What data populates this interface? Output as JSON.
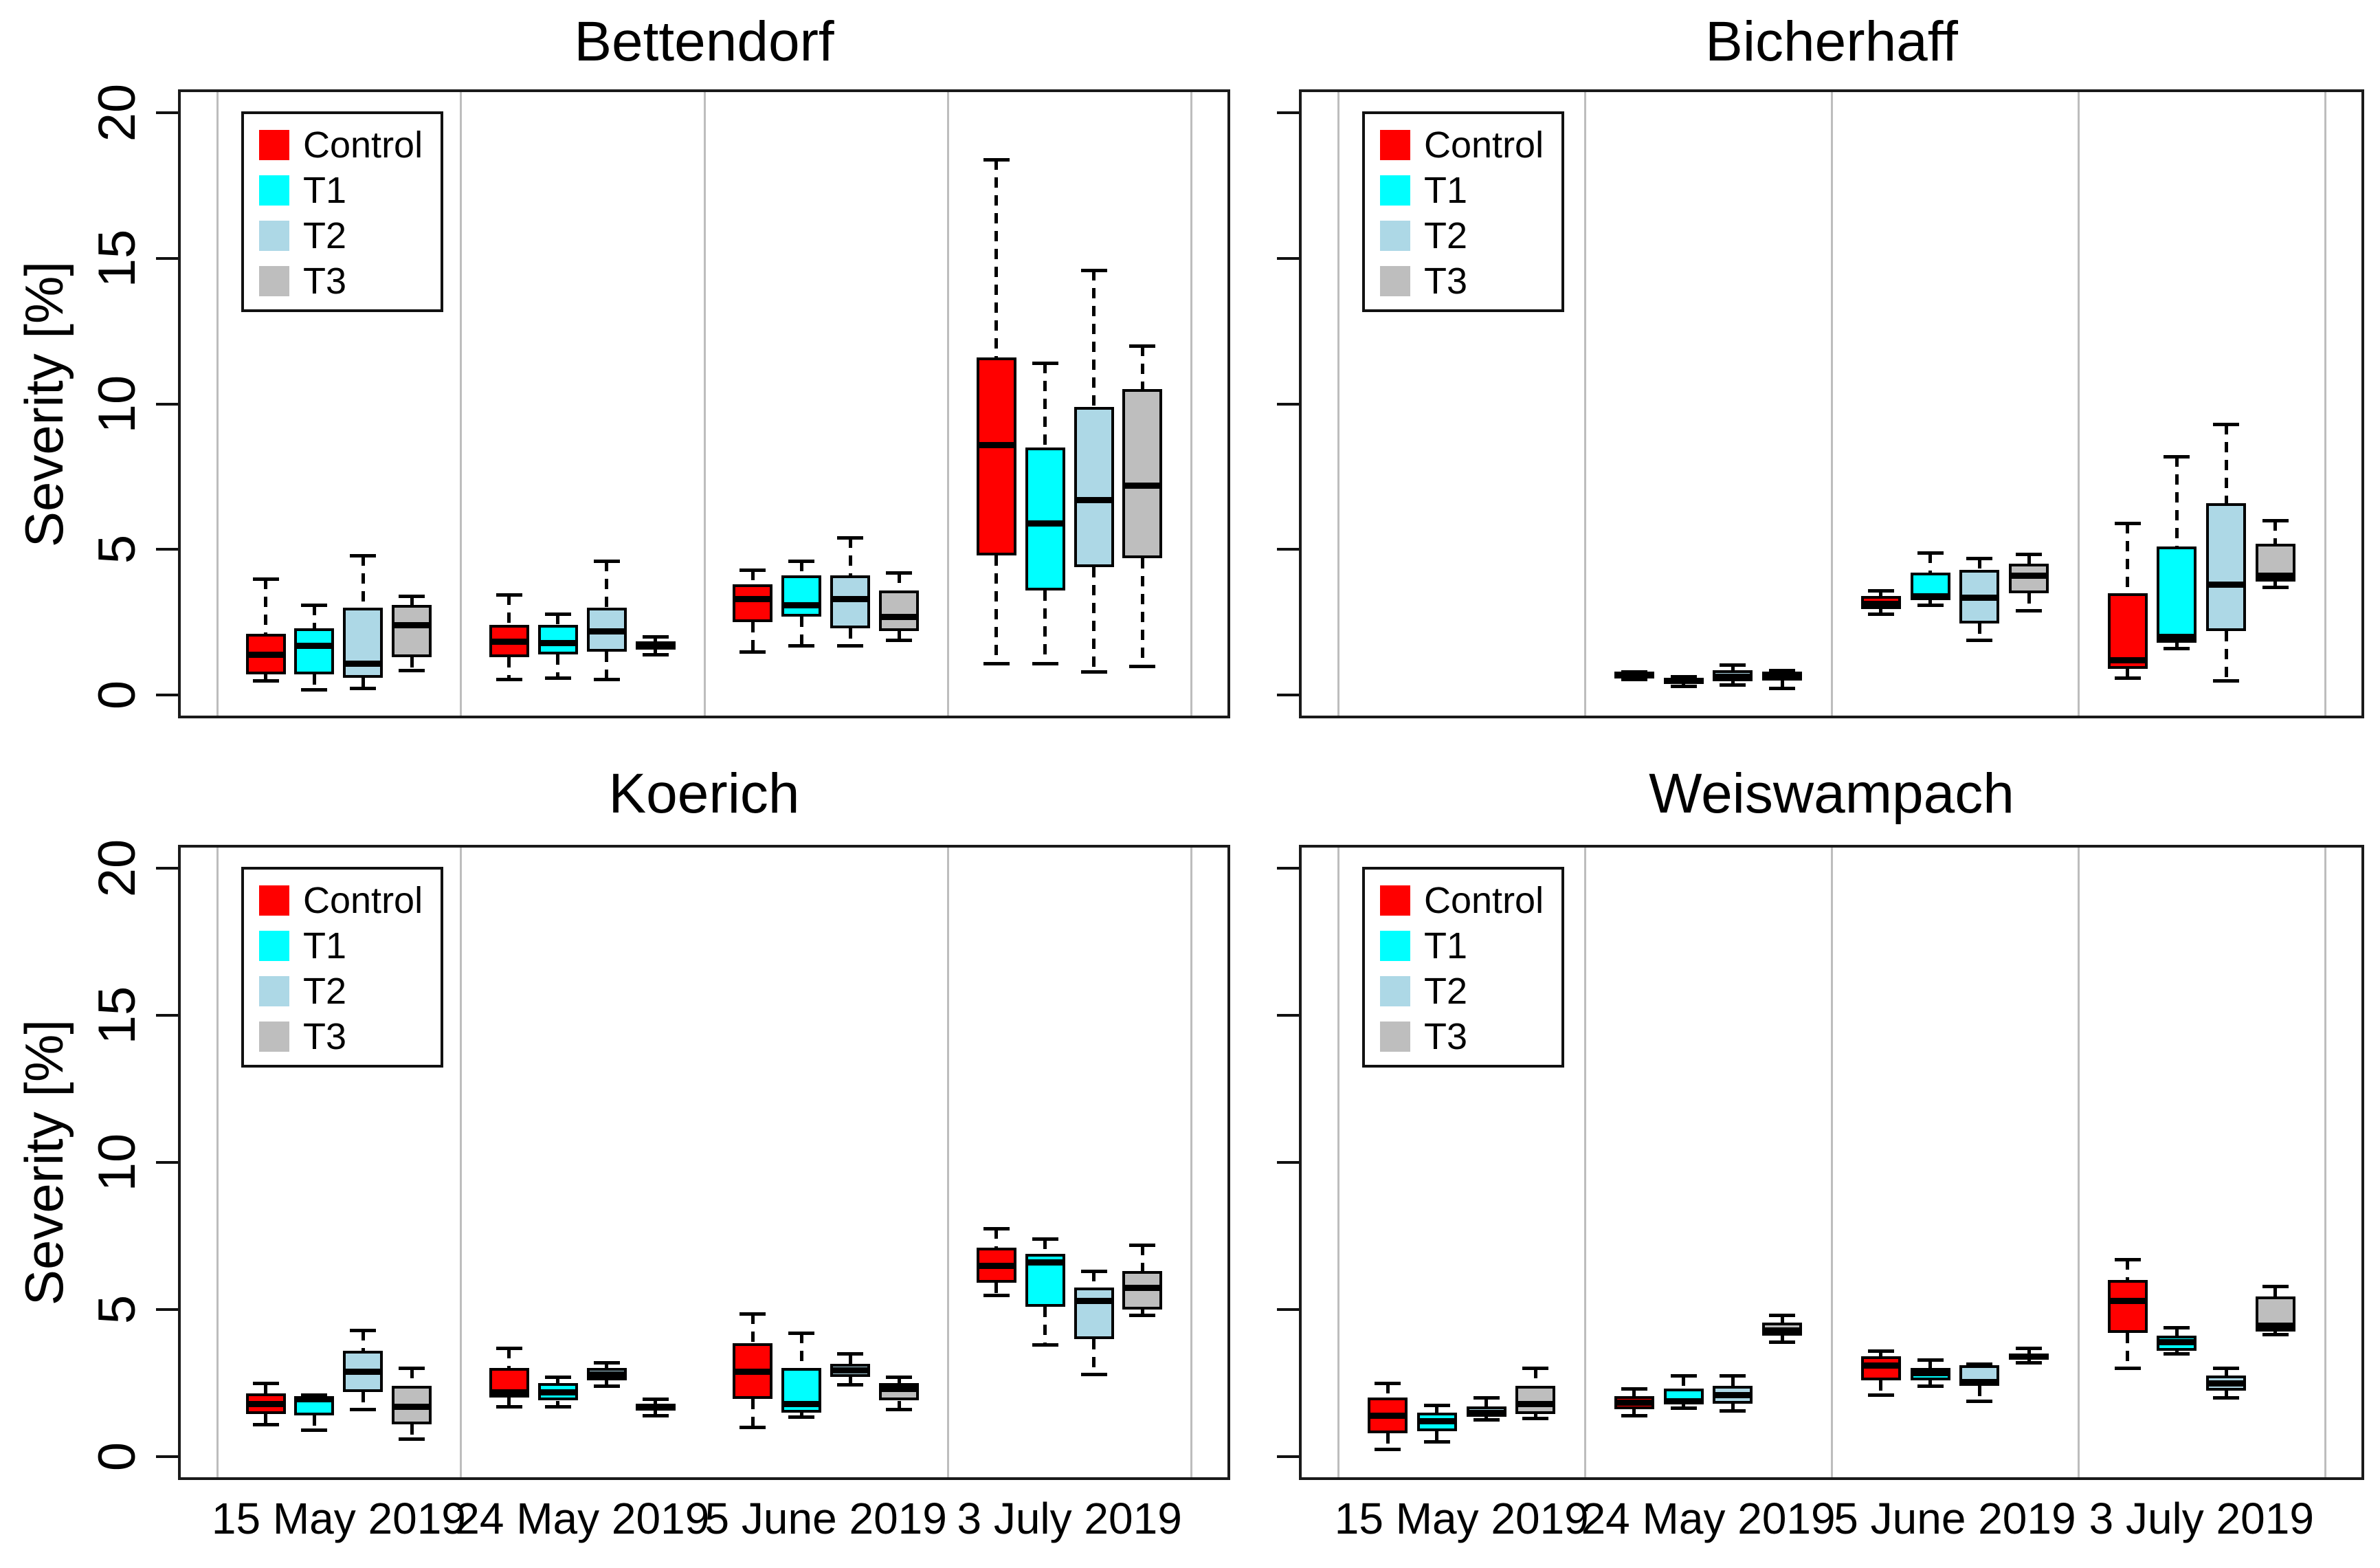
{
  "figure": {
    "background": "#ffffff"
  },
  "colors": {
    "control": "#ff0000",
    "t1": "#00ffff",
    "t2": "#add8e6",
    "t3": "#bebebe",
    "frame": "#1a1a1a",
    "separator": "#bdbdbd",
    "text": "#000000"
  },
  "legend": {
    "entries": [
      {
        "key": "control",
        "label": "Control",
        "color": "#ff0000"
      },
      {
        "key": "t1",
        "label": "T1",
        "color": "#00ffff"
      },
      {
        "key": "t2",
        "label": "T2",
        "color": "#add8e6"
      },
      {
        "key": "t3",
        "label": "T3",
        "color": "#bebebe"
      }
    ]
  },
  "y_axis": {
    "label": "Severity [%]",
    "ticks": [
      0,
      5,
      10,
      15,
      20
    ],
    "tick_labels": [
      "0",
      "5",
      "10",
      "15",
      "20"
    ],
    "range": [
      0,
      20
    ]
  },
  "x_axis": {
    "dates": [
      "15 May 2019",
      "24 May 2019",
      "5 June 2019",
      "3 July 2019"
    ]
  },
  "chart_data": {
    "type": "boxplot",
    "stats_order": [
      "whisker_low",
      "q1",
      "median",
      "q3",
      "whisker_high"
    ],
    "series_order": [
      "control",
      "t1",
      "t2",
      "t3"
    ],
    "ylabel": "Severity [%]",
    "ylim": [
      0,
      20
    ],
    "panels": [
      {
        "title": "Bettendorf",
        "grid": {
          "row": 0,
          "col": 0
        },
        "show_y_tick_labels": true,
        "show_x_labels": false,
        "mid_separator": true,
        "groups": [
          {
            "date": "15 May 2019",
            "boxes": {
              "control": [
                0.5,
                0.7,
                1.4,
                2.1,
                4.0
              ],
              "t1": [
                0.2,
                0.7,
                1.7,
                2.3,
                3.1
              ],
              "t2": [
                0.25,
                0.6,
                1.1,
                3.0,
                4.8
              ],
              "t3": [
                0.85,
                1.3,
                2.4,
                3.1,
                3.4
              ]
            }
          },
          {
            "date": "24 May 2019",
            "boxes": {
              "control": [
                0.55,
                1.3,
                1.85,
                2.4,
                3.45
              ],
              "t1": [
                0.6,
                1.4,
                1.8,
                2.4,
                2.8
              ],
              "t2": [
                0.55,
                1.5,
                2.2,
                3.0,
                4.6
              ],
              "t3": [
                1.4,
                1.55,
                1.7,
                1.85,
                2.0
              ]
            }
          },
          {
            "date": "5 June 2019",
            "boxes": {
              "control": [
                1.5,
                2.5,
                3.3,
                3.8,
                4.3
              ],
              "t1": [
                1.7,
                2.7,
                3.1,
                4.1,
                4.6
              ],
              "t2": [
                1.7,
                2.3,
                3.3,
                4.1,
                5.4
              ],
              "t3": [
                1.9,
                2.2,
                2.7,
                3.6,
                4.2
              ]
            }
          },
          {
            "date": "3 July 2019",
            "boxes": {
              "control": [
                1.1,
                4.8,
                8.6,
                11.6,
                18.4
              ],
              "t1": [
                1.1,
                3.6,
                5.9,
                8.5,
                11.4
              ],
              "t2": [
                0.8,
                4.4,
                6.7,
                9.9,
                14.6
              ],
              "t3": [
                1.0,
                4.7,
                7.2,
                10.5,
                12.0
              ]
            }
          }
        ]
      },
      {
        "title": "Bicherhaff",
        "grid": {
          "row": 0,
          "col": 1
        },
        "show_y_tick_labels": false,
        "show_x_labels": false,
        "mid_separator": true,
        "groups": [
          {
            "date": "15 May 2019",
            "boxes": {
              "control": null,
              "t1": null,
              "t2": null,
              "t3": null
            }
          },
          {
            "date": "24 May 2019",
            "boxes": {
              "control": [
                0.55,
                0.63,
                0.7,
                0.76,
                0.8
              ],
              "t1": [
                0.3,
                0.4,
                0.5,
                0.6,
                0.65
              ],
              "t2": [
                0.35,
                0.47,
                0.65,
                0.85,
                1.05
              ],
              "t3": [
                0.25,
                0.5,
                0.65,
                0.8,
                0.85
              ]
            }
          },
          {
            "date": "5 June 2019",
            "boxes": {
              "control": [
                2.8,
                2.95,
                3.15,
                3.4,
                3.6
              ],
              "t1": [
                3.1,
                3.25,
                3.4,
                4.2,
                4.9
              ],
              "t2": [
                1.9,
                2.45,
                3.35,
                4.3,
                4.7
              ],
              "t3": [
                2.9,
                3.5,
                4.1,
                4.5,
                4.85
              ]
            }
          },
          {
            "date": "3 July 2019",
            "boxes": {
              "control": [
                0.6,
                0.9,
                1.2,
                3.5,
                5.9
              ],
              "t1": [
                1.6,
                1.8,
                2.0,
                5.1,
                8.2
              ],
              "t2": [
                0.5,
                2.2,
                3.8,
                6.6,
                9.3
              ],
              "t3": [
                3.7,
                3.9,
                4.1,
                5.2,
                6.0
              ]
            }
          }
        ]
      },
      {
        "title": "Koerich",
        "grid": {
          "row": 1,
          "col": 0
        },
        "show_y_tick_labels": true,
        "show_x_labels": true,
        "mid_separator": false,
        "groups": [
          {
            "date": "15 May 2019",
            "boxes": {
              "control": [
                1.1,
                1.45,
                1.8,
                2.15,
                2.5
              ],
              "t1": [
                0.9,
                1.4,
                1.95,
                2.05,
                2.1
              ],
              "t2": [
                1.6,
                2.2,
                2.9,
                3.6,
                4.3
              ],
              "t3": [
                0.6,
                1.1,
                1.7,
                2.4,
                3.0
              ]
            }
          },
          {
            "date": "24 May 2019",
            "boxes": {
              "control": [
                1.7,
                2.0,
                2.2,
                3.0,
                3.7
              ],
              "t1": [
                1.7,
                1.9,
                2.2,
                2.5,
                2.7
              ],
              "t2": [
                2.4,
                2.6,
                2.8,
                3.0,
                3.2
              ],
              "t3": [
                1.4,
                1.55,
                1.7,
                1.8,
                1.95
              ]
            }
          },
          {
            "date": "5 June 2019",
            "boxes": {
              "control": [
                1.0,
                1.95,
                2.9,
                3.85,
                4.85
              ],
              "t1": [
                1.35,
                1.5,
                1.8,
                3.0,
                4.2
              ],
              "t2": [
                2.45,
                2.7,
                2.95,
                3.15,
                3.5
              ],
              "t3": [
                1.6,
                1.9,
                2.3,
                2.5,
                2.7
              ]
            }
          },
          {
            "date": "3 July 2019",
            "boxes": {
              "control": [
                5.5,
                5.9,
                6.5,
                7.1,
                7.75
              ],
              "t1": [
                3.8,
                5.1,
                6.6,
                6.9,
                7.4
              ],
              "t2": [
                2.8,
                4.0,
                5.3,
                5.75,
                6.3
              ],
              "t3": [
                4.8,
                5.0,
                5.75,
                6.3,
                7.2
              ]
            }
          }
        ]
      },
      {
        "title": "Weiswampach",
        "grid": {
          "row": 1,
          "col": 1
        },
        "show_y_tick_labels": false,
        "show_x_labels": true,
        "mid_separator": true,
        "groups": [
          {
            "date": "15 May 2019",
            "boxes": {
              "control": [
                0.25,
                0.8,
                1.4,
                2.0,
                2.5
              ],
              "t1": [
                0.5,
                0.85,
                1.2,
                1.5,
                1.75
              ],
              "t2": [
                1.25,
                1.35,
                1.5,
                1.7,
                2.0
              ],
              "t3": [
                1.3,
                1.45,
                1.8,
                2.4,
                3.0
              ]
            }
          },
          {
            "date": "24 May 2019",
            "boxes": {
              "control": [
                1.4,
                1.6,
                1.85,
                2.05,
                2.3
              ],
              "t1": [
                1.65,
                1.8,
                1.9,
                2.3,
                2.75
              ],
              "t2": [
                1.55,
                1.8,
                2.1,
                2.4,
                2.75
              ],
              "t3": [
                3.9,
                4.1,
                4.3,
                4.55,
                4.8
              ]
            }
          },
          {
            "date": "5 June 2019",
            "boxes": {
              "control": [
                2.1,
                2.6,
                3.1,
                3.4,
                3.6
              ],
              "t1": [
                2.4,
                2.6,
                2.85,
                3.0,
                3.3
              ],
              "t2": [
                1.9,
                2.4,
                2.55,
                3.1,
                3.15
              ],
              "t3": [
                3.2,
                3.3,
                3.4,
                3.5,
                3.7
              ]
            }
          },
          {
            "date": "3 July 2019",
            "boxes": {
              "control": [
                3.0,
                4.2,
                5.3,
                6.0,
                6.7
              ],
              "t1": [
                3.5,
                3.6,
                3.9,
                4.1,
                4.4
              ],
              "t2": [
                2.0,
                2.25,
                2.5,
                2.75,
                3.0
              ],
              "t3": [
                4.15,
                4.25,
                4.45,
                5.45,
                5.8
              ]
            }
          }
        ]
      }
    ]
  }
}
